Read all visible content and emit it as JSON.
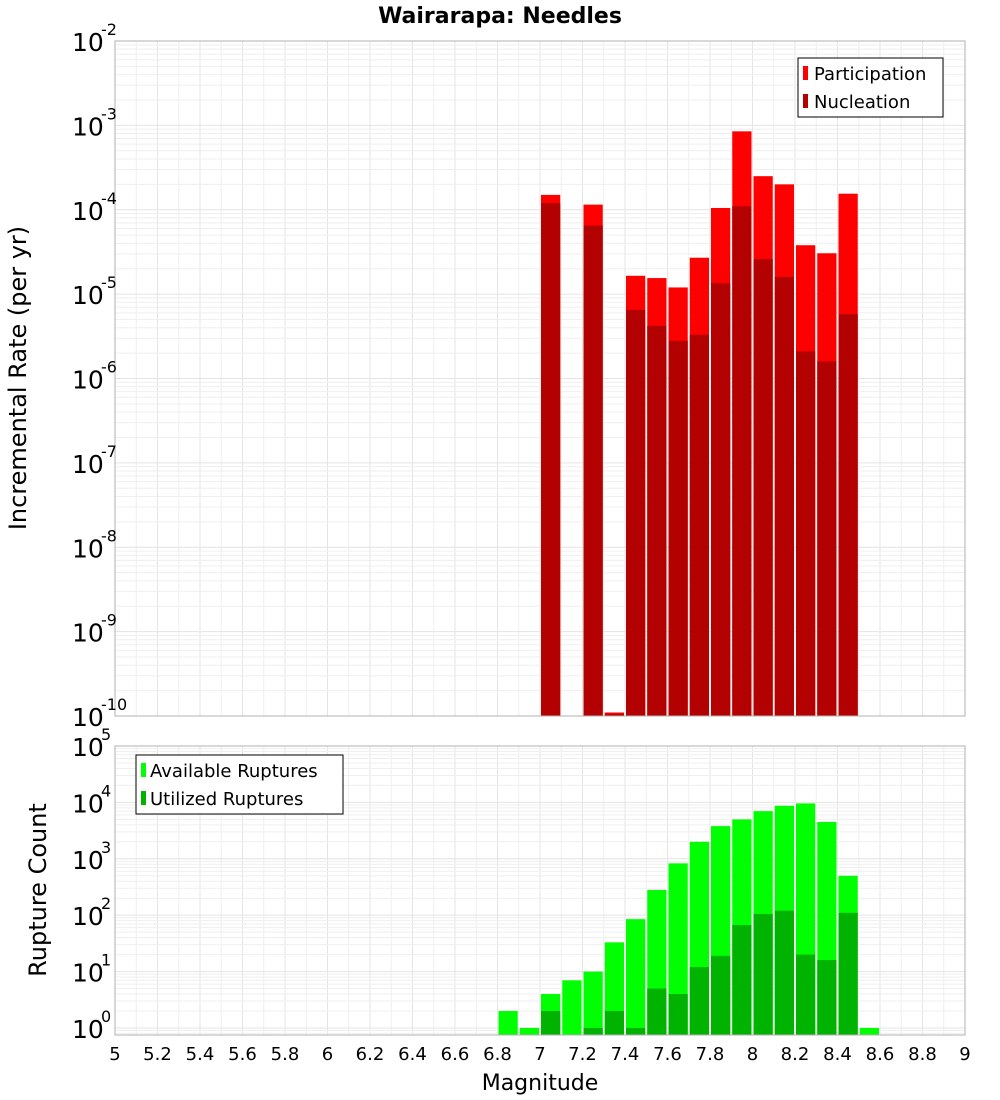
{
  "chart_data": [
    {
      "type": "bar",
      "title": "Wairarapa: Needles",
      "xlabel": "",
      "ylabel": "Incremental Rate (per yr)",
      "yscale": "log",
      "ylim": [
        1e-10,
        0.01
      ],
      "xlim": [
        5,
        9
      ],
      "grid": true,
      "legend_position": "top-right",
      "bar_width": 0.1,
      "series": [
        {
          "name": "Participation",
          "color": "#ff0000",
          "x": [
            7.05,
            7.25,
            7.35,
            7.45,
            7.55,
            7.65,
            7.75,
            7.85,
            7.95,
            8.05,
            8.15,
            8.25,
            8.35,
            8.45
          ],
          "values": [
            0.00015,
            0.000115,
            1.1e-10,
            1.65e-05,
            1.55e-05,
            1.2e-05,
            2.7e-05,
            0.000105,
            0.00085,
            0.00025,
            0.0002,
            3.8e-05,
            3.05e-05,
            0.000155
          ]
        },
        {
          "name": "Nucleation",
          "color": "#b30000",
          "x": [
            7.05,
            7.25,
            7.35,
            7.45,
            7.55,
            7.65,
            7.75,
            7.85,
            7.95,
            8.05,
            8.15,
            8.25,
            8.35,
            8.45
          ],
          "values": [
            0.00012,
            6.5e-05,
            1.05e-10,
            6.5e-06,
            4.2e-06,
            2.8e-06,
            3.3e-06,
            1.35e-05,
            0.00011,
            2.6e-05,
            1.6e-05,
            2.1e-06,
            1.6e-06,
            5.8e-06
          ]
        }
      ]
    },
    {
      "type": "bar",
      "title": "",
      "xlabel": "Magnitude",
      "ylabel": "Rupture Count",
      "yscale": "log",
      "ylim": [
        0.75,
        100000
      ],
      "xlim": [
        5,
        9
      ],
      "grid": true,
      "legend_position": "top-left",
      "bar_width": 0.1,
      "x_ticks": [
        "5",
        "5.2",
        "5.4",
        "5.6",
        "5.8",
        "6",
        "6.2",
        "6.4",
        "6.6",
        "6.8",
        "7",
        "7.2",
        "7.4",
        "7.6",
        "7.8",
        "8",
        "8.2",
        "8.4",
        "8.6",
        "8.8",
        "9"
      ],
      "series": [
        {
          "name": "Available Ruptures",
          "color": "#00ff00",
          "x": [
            6.85,
            6.95,
            7.05,
            7.15,
            7.25,
            7.35,
            7.45,
            7.55,
            7.65,
            7.75,
            7.85,
            7.95,
            8.05,
            8.15,
            8.25,
            8.35,
            8.45,
            8.55
          ],
          "values": [
            2,
            1,
            4,
            7,
            10,
            33,
            85,
            280,
            830,
            2000,
            3800,
            5000,
            7000,
            8700,
            9600,
            4500,
            500,
            1
          ]
        },
        {
          "name": "Utilized Ruptures",
          "color": "#00b300",
          "x": [
            6.85,
            6.95,
            7.05,
            7.15,
            7.25,
            7.35,
            7.45,
            7.55,
            7.65,
            7.75,
            7.85,
            7.95,
            8.05,
            8.15,
            8.25,
            8.35,
            8.45,
            8.55
          ],
          "values": [
            0,
            0,
            2,
            0,
            1,
            2,
            1,
            5,
            4,
            12,
            19,
            67,
            105,
            120,
            20,
            16,
            110,
            0
          ]
        }
      ]
    }
  ]
}
